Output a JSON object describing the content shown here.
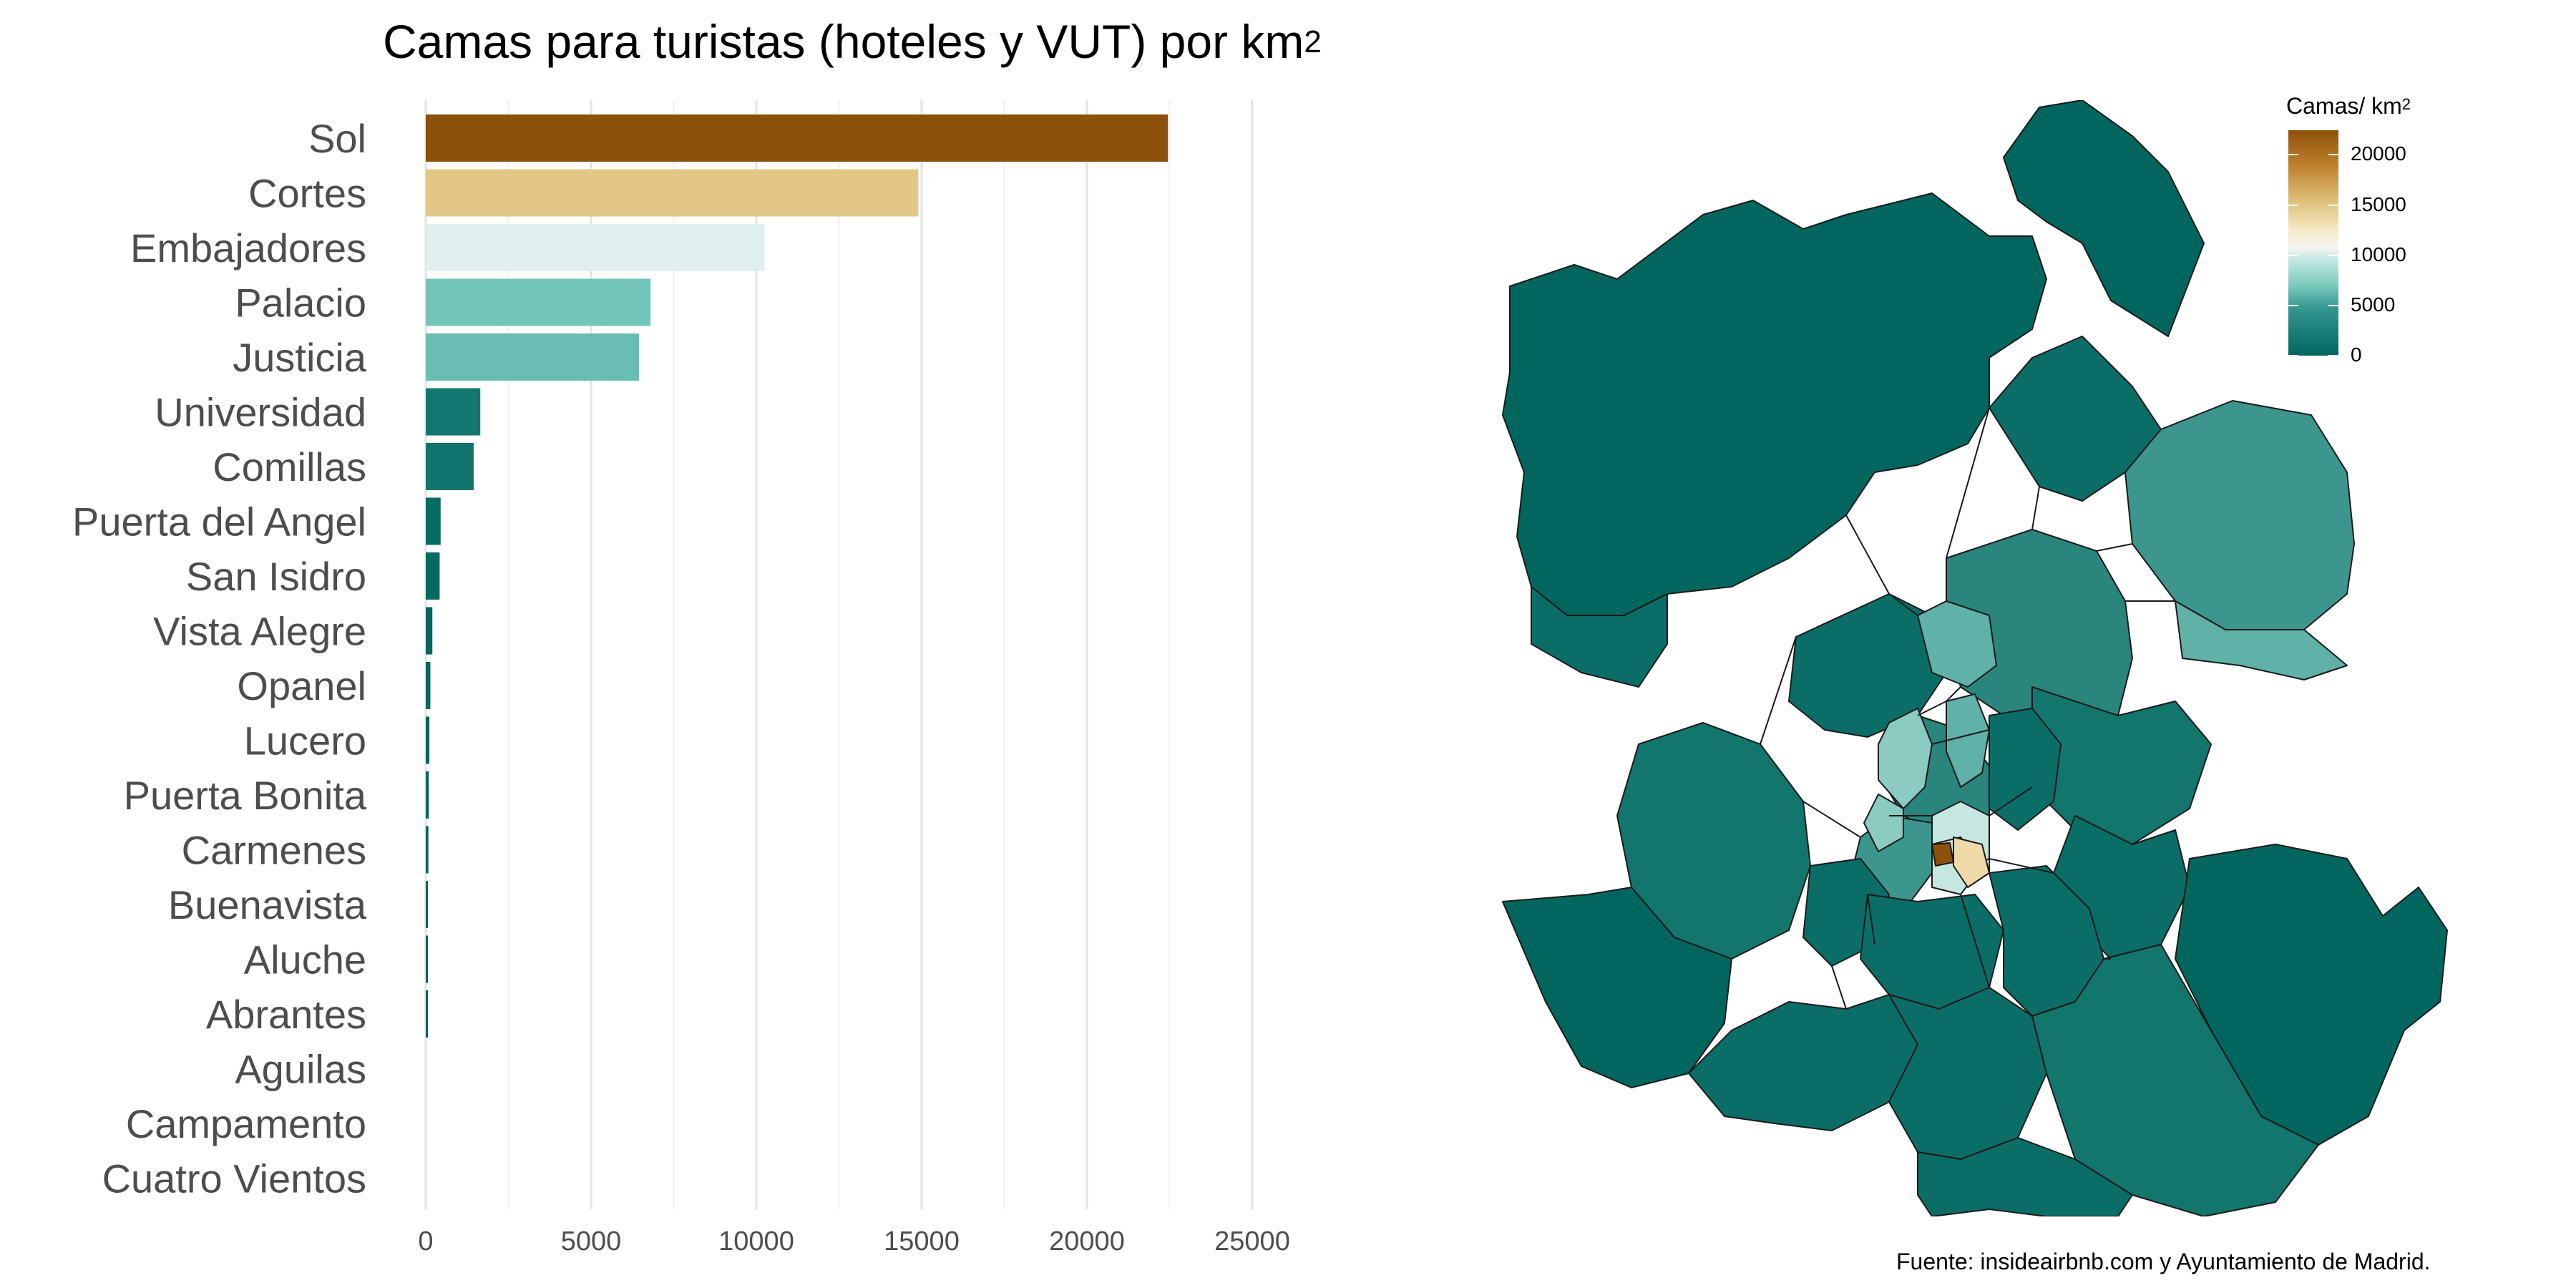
{
  "chart_data": {
    "type": "bar",
    "orientation": "horizontal",
    "title_prefix": "Camas para turistas (hoteles y VUT) por km",
    "title_sup": "2",
    "categories": [
      "Sol",
      "Cortes",
      "Embajadores",
      "Palacio",
      "Justicia",
      "Universidad",
      "Comillas",
      "Puerta del Angel",
      "San Isidro",
      "Vista Alegre",
      "Opanel",
      "Lucero",
      "Puerta Bonita",
      "Carmenes",
      "Buenavista",
      "Aluche",
      "Abrantes",
      "Aguilas",
      "Campamento",
      "Cuatro Vientos"
    ],
    "values": [
      22450,
      14900,
      10250,
      6800,
      6450,
      1650,
      1450,
      450,
      420,
      200,
      140,
      110,
      90,
      80,
      60,
      50,
      30,
      0,
      0,
      0
    ],
    "xlim": [
      0,
      25000
    ],
    "xticks": [
      "0",
      "5000",
      "10000",
      "15000",
      "20000",
      "25000"
    ],
    "xtick_values": [
      0,
      5000,
      10000,
      15000,
      20000,
      25000
    ],
    "grid": true,
    "colorscale": [
      "#01665e",
      "#35978f",
      "#80cdc1",
      "#c7eae5",
      "#f5f5f5",
      "#f6e8c3",
      "#dfc27d",
      "#bf812d",
      "#8c510a"
    ]
  },
  "legend": {
    "title_prefix": "Camas/ km",
    "title_sup": "2",
    "labels": [
      "20000",
      "15000",
      "10000",
      "5000",
      "0"
    ],
    "label_values": [
      20000,
      15000,
      10000,
      5000,
      0
    ],
    "max_value": 22450
  },
  "map": {
    "fill_colors": [
      "#01665e",
      "#0b6e66",
      "#13766d",
      "#2a857c",
      "#3d968d",
      "#60b1a7",
      "#8ccbc1",
      "#c6e7e0",
      "#f0d9a8",
      "#8c510a"
    ]
  },
  "source": "Fuente: insideairbnb.com y Ayuntamiento de Madrid."
}
